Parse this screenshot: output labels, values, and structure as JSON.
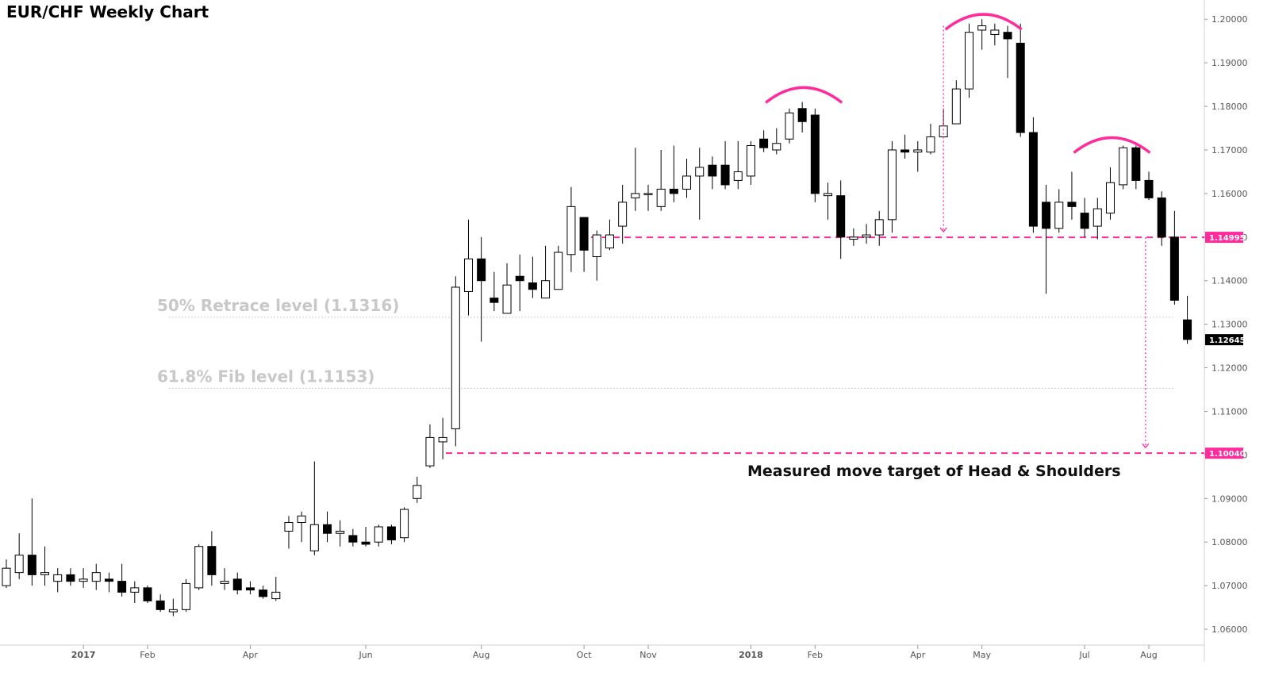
{
  "title": "EUR/CHF Weekly Chart",
  "colors": {
    "up_fill": "#ffffff",
    "down_fill": "#000000",
    "accent": "#ff2a9c",
    "level_line": "#cccccc",
    "grid_text": "#555555"
  },
  "chart_data": {
    "type": "candlestick",
    "title": "EUR/CHF Weekly Chart",
    "ylim": [
      1.055,
      1.2025
    ],
    "y_ticks": [
      "1.06000",
      "1.07000",
      "1.08000",
      "1.09000",
      "1.10000",
      "1.11000",
      "1.12000",
      "1.13000",
      "1.14000",
      "1.15000",
      "1.16000",
      "1.17000",
      "1.18000",
      "1.19000",
      "1.20000"
    ],
    "x_labels": [
      "2017",
      "Feb",
      "Apr",
      "Jun",
      "Aug",
      "Oct",
      "Nov",
      "2018",
      "Feb",
      "Apr",
      "May",
      "Jul",
      "Aug"
    ],
    "x_label_index": [
      6,
      11,
      19,
      28,
      37,
      45,
      50,
      58,
      63,
      71,
      76,
      84,
      89
    ],
    "candles": [
      [
        1.07,
        1.074,
        1.0695,
        1.076
      ],
      [
        1.073,
        1.077,
        1.0715,
        1.082
      ],
      [
        1.077,
        1.0725,
        1.07,
        1.09
      ],
      [
        1.0725,
        1.073,
        1.07,
        1.079
      ],
      [
        1.071,
        1.0725,
        1.0685,
        1.074
      ],
      [
        1.0725,
        1.071,
        1.07,
        1.074
      ],
      [
        1.071,
        1.0715,
        1.0695,
        1.074
      ],
      [
        1.071,
        1.073,
        1.069,
        1.075
      ],
      [
        1.0715,
        1.071,
        1.0685,
        1.073
      ],
      [
        1.071,
        1.0685,
        1.0675,
        1.075
      ],
      [
        1.0685,
        1.0695,
        1.066,
        1.071
      ],
      [
        1.0695,
        1.0665,
        1.066,
        1.07
      ],
      [
        1.0665,
        1.0645,
        1.064,
        1.068
      ],
      [
        1.064,
        1.0645,
        1.063,
        1.067
      ],
      [
        1.0645,
        1.0705,
        1.064,
        1.0715
      ],
      [
        1.0695,
        1.079,
        1.069,
        1.0795
      ],
      [
        1.079,
        1.0725,
        1.07,
        1.0825
      ],
      [
        1.0705,
        1.071,
        1.069,
        1.074
      ],
      [
        1.0715,
        1.069,
        1.068,
        1.073
      ],
      [
        1.0695,
        1.069,
        1.068,
        1.071
      ],
      [
        1.069,
        1.0675,
        1.067,
        1.07
      ],
      [
        1.067,
        1.0685,
        1.0665,
        1.072
      ],
      [
        1.0825,
        1.0845,
        1.0785,
        1.086
      ],
      [
        1.0845,
        1.086,
        1.08,
        1.087
      ],
      [
        1.078,
        1.084,
        1.077,
        1.0985
      ],
      [
        1.084,
        1.082,
        1.08,
        1.087
      ],
      [
        1.082,
        1.0825,
        1.079,
        1.085
      ],
      [
        1.0815,
        1.08,
        1.079,
        1.083
      ],
      [
        1.08,
        1.0795,
        1.079,
        1.0835
      ],
      [
        1.08,
        1.0835,
        1.079,
        1.084
      ],
      [
        1.0835,
        1.0805,
        1.0795,
        1.084
      ],
      [
        1.081,
        1.0875,
        1.08,
        1.088
      ],
      [
        1.09,
        1.093,
        1.089,
        1.095
      ],
      [
        1.0975,
        1.104,
        1.097,
        1.107
      ],
      [
        1.103,
        1.104,
        1.099,
        1.1085
      ],
      [
        1.106,
        1.1385,
        1.102,
        1.141
      ],
      [
        1.1375,
        1.145,
        1.132,
        1.154
      ],
      [
        1.145,
        1.14,
        1.126,
        1.15
      ],
      [
        1.136,
        1.135,
        1.133,
        1.142
      ],
      [
        1.1325,
        1.139,
        1.1325,
        1.144
      ],
      [
        1.141,
        1.14,
        1.133,
        1.146
      ],
      [
        1.1395,
        1.138,
        1.136,
        1.1455
      ],
      [
        1.136,
        1.14,
        1.137,
        1.148
      ],
      [
        1.138,
        1.1465,
        1.138,
        1.148
      ],
      [
        1.146,
        1.157,
        1.142,
        1.1615
      ],
      [
        1.1545,
        1.147,
        1.142,
        1.1545
      ],
      [
        1.1455,
        1.1505,
        1.14,
        1.1515
      ],
      [
        1.1475,
        1.1505,
        1.147,
        1.154
      ],
      [
        1.1525,
        1.158,
        1.1485,
        1.162
      ],
      [
        1.159,
        1.16,
        1.156,
        1.1705
      ],
      [
        1.16,
        1.16,
        1.156,
        1.162
      ],
      [
        1.157,
        1.161,
        1.156,
        1.17
      ],
      [
        1.161,
        1.16,
        1.158,
        1.171
      ],
      [
        1.161,
        1.164,
        1.159,
        1.168
      ],
      [
        1.164,
        1.166,
        1.154,
        1.1705
      ],
      [
        1.1665,
        1.164,
        1.161,
        1.1685
      ],
      [
        1.1665,
        1.162,
        1.161,
        1.172
      ],
      [
        1.163,
        1.165,
        1.161,
        1.172
      ],
      [
        1.164,
        1.171,
        1.162,
        1.172
      ],
      [
        1.1725,
        1.1705,
        1.1695,
        1.1745
      ],
      [
        1.17,
        1.1715,
        1.169,
        1.175
      ],
      [
        1.1725,
        1.1785,
        1.1715,
        1.1795
      ],
      [
        1.1795,
        1.1765,
        1.174,
        1.181
      ],
      [
        1.178,
        1.16,
        1.158,
        1.1795
      ],
      [
        1.1595,
        1.16,
        1.154,
        1.1625
      ],
      [
        1.1595,
        1.15,
        1.145,
        1.163
      ],
      [
        1.1495,
        1.15,
        1.148,
        1.152
      ],
      [
        1.15,
        1.1505,
        1.1485,
        1.153
      ],
      [
        1.1505,
        1.154,
        1.148,
        1.156
      ],
      [
        1.154,
        1.17,
        1.151,
        1.172
      ],
      [
        1.17,
        1.1695,
        1.168,
        1.1735
      ],
      [
        1.1695,
        1.17,
        1.165,
        1.172
      ],
      [
        1.1695,
        1.173,
        1.169,
        1.176
      ],
      [
        1.173,
        1.1755,
        1.173,
        1.1795
      ],
      [
        1.176,
        1.184,
        1.176,
        1.186
      ],
      [
        1.184,
        1.197,
        1.182,
        1.199
      ],
      [
        1.1975,
        1.1985,
        1.193,
        1.2
      ],
      [
        1.1965,
        1.1975,
        1.194,
        1.199
      ],
      [
        1.197,
        1.1955,
        1.1865,
        1.1985
      ],
      [
        1.1945,
        1.174,
        1.173,
        1.199
      ],
      [
        1.174,
        1.1525,
        1.151,
        1.1775
      ],
      [
        1.158,
        1.152,
        1.137,
        1.162
      ],
      [
        1.152,
        1.158,
        1.151,
        1.161
      ],
      [
        1.158,
        1.157,
        1.154,
        1.165
      ],
      [
        1.1555,
        1.152,
        1.15,
        1.159
      ],
      [
        1.1525,
        1.1565,
        1.1495,
        1.159
      ],
      [
        1.1555,
        1.1625,
        1.154,
        1.166
      ],
      [
        1.162,
        1.1705,
        1.161,
        1.171
      ],
      [
        1.1705,
        1.163,
        1.161,
        1.171
      ],
      [
        1.163,
        1.159,
        1.1585,
        1.165
      ],
      [
        1.159,
        1.15,
        1.148,
        1.1605
      ],
      [
        1.15,
        1.1355,
        1.1345,
        1.156
      ],
      [
        1.131,
        1.1265,
        1.1255,
        1.1365
      ]
    ],
    "levels": [
      {
        "value": 1.1316,
        "label": "50% Retrace level (1.1316)"
      },
      {
        "value": 1.1153,
        "label": "61.8% Fib level (1.1153)"
      }
    ],
    "neckline": {
      "value": 1.14995,
      "label": "1.14995"
    },
    "target": {
      "value": 1.1004,
      "label": "1.10040"
    },
    "last_price": {
      "value": 1.12645,
      "label": "1.12645"
    },
    "annotation": "Measured move target of Head & Shoulders",
    "patterns": [
      {
        "name": "left shoulder",
        "center_index": 62
      },
      {
        "name": "head",
        "center_index": 76
      },
      {
        "name": "right shoulder",
        "center_index": 86
      }
    ]
  }
}
